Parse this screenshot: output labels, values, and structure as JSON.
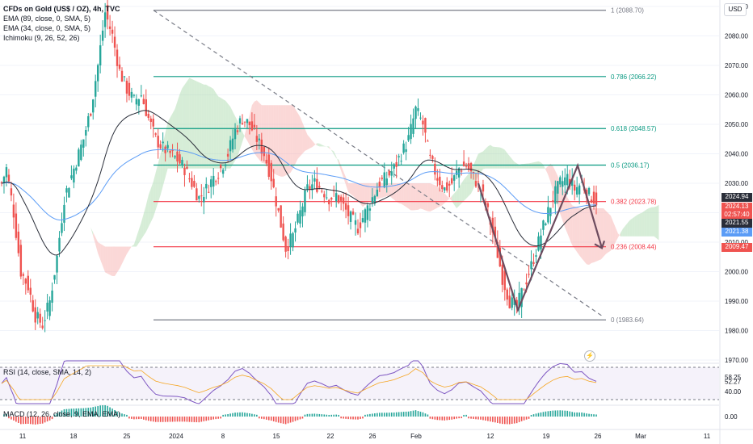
{
  "legend": {
    "title": "CFDs on Gold (US$ / OZ), 4h, TVC",
    "ema89": "EMA (89, close, 0, SMA, 5)",
    "ema34": "EMA (34, close, 0, SMA, 5)",
    "ichimoku": "Ichimoku (9, 26, 52, 26)"
  },
  "rsi_label": "RSI (14, close, SMA, 14, 2)",
  "macd_label": "MACD (12, 26, close, 9, EMA, EMA)",
  "currency": "USD",
  "colors": {
    "up": "#26a69a",
    "down": "#ef5350",
    "ema89": "#5b9cf6",
    "ema34": "#2a2e39",
    "cloud_bull": "#a5d6a7",
    "cloud_bear": "#f7a9a7",
    "fib_green": "#089981",
    "fib_red": "#f23645",
    "fib_gray": "#787b86",
    "arrow": "#6d4c5f",
    "rsi": "#7e57c2",
    "rsi_ma": "#f5a623"
  },
  "chart_data": {
    "type": "candlestick",
    "symbol": "CFDs on Gold (US$ / OZ)",
    "timeframe": "4h",
    "source": "TVC",
    "ylim": [
      1970,
      2090
    ],
    "yticks": [
      1970,
      1980,
      1990,
      2000,
      2010,
      2020,
      2030,
      2040,
      2050,
      2060,
      2070,
      2080,
      2090
    ],
    "xticks": [
      "11",
      "18",
      "25",
      "2024",
      "8",
      "15",
      "22",
      "26",
      "Feb",
      "12",
      "19",
      "26",
      "Mar",
      "11"
    ],
    "fib_levels": [
      {
        "ratio": "1",
        "price": 2088.7,
        "label": "1 (2088.70)"
      },
      {
        "ratio": "0.786",
        "price": 2066.22,
        "label": "0.786 (2066.22)"
      },
      {
        "ratio": "0.618",
        "price": 2048.57,
        "label": "0.618 (2048.57)"
      },
      {
        "ratio": "0.5",
        "price": 2036.17,
        "label": "0.5 (2036.17)"
      },
      {
        "ratio": "0.382",
        "price": 2023.78,
        "label": "0.382 (2023.78)"
      },
      {
        "ratio": "0.236",
        "price": 2008.44,
        "label": "0.236 (2008.44)"
      },
      {
        "ratio": "0",
        "price": 1983.64,
        "label": "0 (1983.64)"
      }
    ],
    "price_tags": [
      {
        "value": "2024.94",
        "color": "#2a2e39"
      },
      {
        "value": "2024.13",
        "sub": "02:57:40",
        "color": "#ef5350"
      },
      {
        "value": "2021.55",
        "color": "#2a2e39"
      },
      {
        "value": "2021.38",
        "color": "#5b9cf6"
      },
      {
        "value": "2009.47",
        "color": "#ef5350"
      }
    ],
    "close_path": [
      [
        0,
        2030
      ],
      [
        2,
        2035
      ],
      [
        5,
        2020
      ],
      [
        8,
        2000
      ],
      [
        11,
        1995
      ],
      [
        14,
        1985
      ],
      [
        17,
        1982
      ],
      [
        20,
        1990
      ],
      [
        23,
        2005
      ],
      [
        26,
        2025
      ],
      [
        30,
        2035
      ],
      [
        34,
        2045
      ],
      [
        37,
        2055
      ],
      [
        40,
        2070
      ],
      [
        43,
        2088
      ],
      [
        46,
        2080
      ],
      [
        49,
        2068
      ],
      [
        52,
        2062
      ],
      [
        55,
        2058
      ],
      [
        58,
        2060
      ],
      [
        61,
        2052
      ],
      [
        64,
        2045
      ],
      [
        67,
        2042
      ],
      [
        70,
        2040
      ],
      [
        73,
        2038
      ],
      [
        76,
        2035
      ],
      [
        79,
        2030
      ],
      [
        82,
        2025
      ],
      [
        85,
        2028
      ],
      [
        88,
        2032
      ],
      [
        91,
        2035
      ],
      [
        94,
        2040
      ],
      [
        97,
        2048
      ],
      [
        100,
        2052
      ],
      [
        103,
        2050
      ],
      [
        106,
        2045
      ],
      [
        109,
        2040
      ],
      [
        112,
        2032
      ],
      [
        115,
        2020
      ],
      [
        118,
        2008
      ],
      [
        121,
        2012
      ],
      [
        124,
        2020
      ],
      [
        127,
        2028
      ],
      [
        130,
        2030
      ],
      [
        133,
        2028
      ],
      [
        136,
        2025
      ],
      [
        139,
        2026
      ],
      [
        142,
        2022
      ],
      [
        145,
        2018
      ],
      [
        148,
        2015
      ],
      [
        151,
        2020
      ],
      [
        154,
        2025
      ],
      [
        157,
        2030
      ],
      [
        160,
        2032
      ],
      [
        163,
        2035
      ],
      [
        166,
        2040
      ],
      [
        169,
        2045
      ],
      [
        172,
        2055
      ],
      [
        175,
        2050
      ],
      [
        178,
        2038
      ],
      [
        181,
        2032
      ],
      [
        184,
        2028
      ],
      [
        187,
        2030
      ],
      [
        190,
        2035
      ],
      [
        193,
        2036
      ],
      [
        196,
        2032
      ],
      [
        199,
        2028
      ],
      [
        202,
        2020
      ],
      [
        205,
        2010
      ],
      [
        208,
        1998
      ],
      [
        211,
        1990
      ],
      [
        214,
        1988
      ],
      [
        217,
        1995
      ],
      [
        220,
        2002
      ],
      [
        223,
        2010
      ],
      [
        226,
        2018
      ],
      [
        229,
        2025
      ],
      [
        232,
        2030
      ],
      [
        235,
        2032
      ],
      [
        238,
        2028
      ],
      [
        241,
        2030
      ],
      [
        244,
        2026
      ],
      [
        247,
        2024
      ]
    ],
    "rsi": {
      "levels": [
        58.25,
        52.27,
        40.0
      ],
      "overbought": 70,
      "oversold": 30,
      "ticks": [
        "40.00",
        "58.25",
        "52.27"
      ]
    },
    "macd": {
      "zero": "0.00"
    }
  }
}
